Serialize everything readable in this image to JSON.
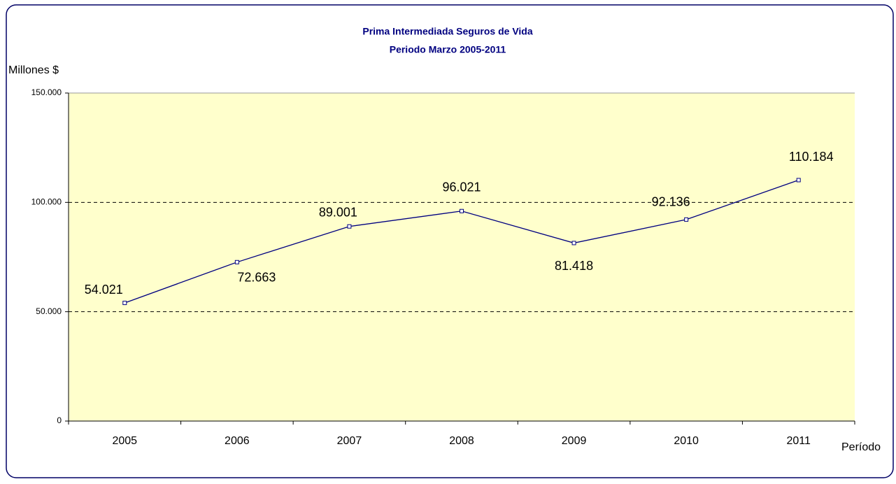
{
  "chart_data": {
    "type": "line",
    "title": "Prima Intermediada Seguros de Vida",
    "subtitle": "Periodo Marzo 2005-2011",
    "y_label": "Millones $",
    "x_label": "Período",
    "categories": [
      "2005",
      "2006",
      "2007",
      "2008",
      "2009",
      "2010",
      "2011"
    ],
    "series": [
      {
        "name": "Prima Intermediada",
        "color": "#000080",
        "values": [
          54021,
          72663,
          89001,
          96021,
          81418,
          92136,
          110184
        ],
        "value_labels": [
          "54.021",
          "72.663",
          "89.001",
          "96.021",
          "81.418",
          "92.136",
          "110.184"
        ]
      }
    ],
    "ylim": [
      0,
      150000
    ],
    "yticks": [
      0,
      {
        "value": 50000,
        "label": "50.000"
      },
      {
        "value": 100000,
        "label": "100.000"
      },
      {
        "value": 150000,
        "label": "150.000"
      }
    ],
    "grid": true,
    "plot_color": "#ffffcc"
  }
}
